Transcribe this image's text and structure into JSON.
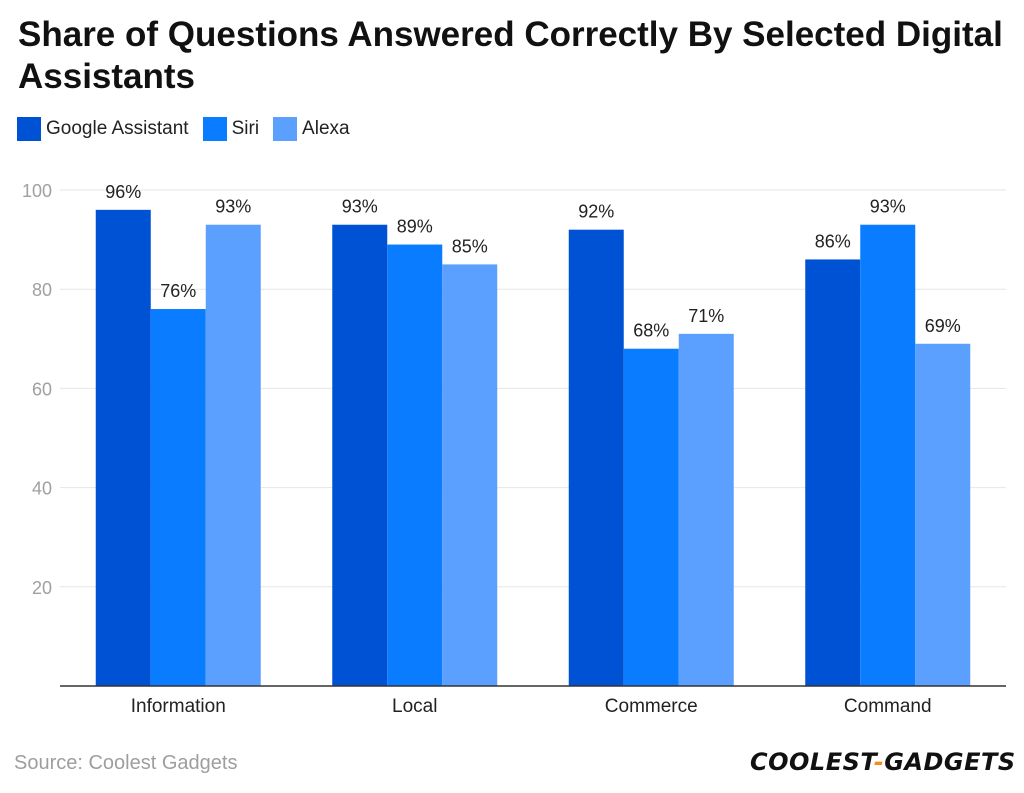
{
  "title": "Share of Questions Answered Correctly By Selected Digital Assistants",
  "source": "Source: Coolest Gadgets",
  "logo": {
    "left": "COOLEST",
    "dash": "-",
    "right": "GADGETS"
  },
  "colors": {
    "google": "#0052d4",
    "siri": "#0a7cff",
    "alexa": "#5b9fff",
    "grid": "#e6e6e6",
    "axis": "#333333"
  },
  "chart_data": {
    "type": "bar",
    "title": "Share of Questions Answered Correctly By Selected Digital Assistants",
    "categories": [
      "Information",
      "Local",
      "Commerce",
      "Command"
    ],
    "series": [
      {
        "name": "Google Assistant",
        "values": [
          96,
          93,
          92,
          86
        ],
        "labels": [
          "96%",
          "93%",
          "92%",
          "86%"
        ]
      },
      {
        "name": "Siri",
        "values": [
          76,
          89,
          68,
          93
        ],
        "labels": [
          "76%",
          "89%",
          "68%",
          "93%"
        ]
      },
      {
        "name": "Alexa",
        "values": [
          93,
          85,
          71,
          69
        ],
        "labels": [
          "93%",
          "85%",
          "71%",
          "69%"
        ]
      }
    ],
    "yticks": [
      20,
      40,
      60,
      80,
      100
    ],
    "ylim": [
      0,
      100
    ],
    "grid": true,
    "legend": "top-left",
    "xlabel": "",
    "ylabel": ""
  }
}
